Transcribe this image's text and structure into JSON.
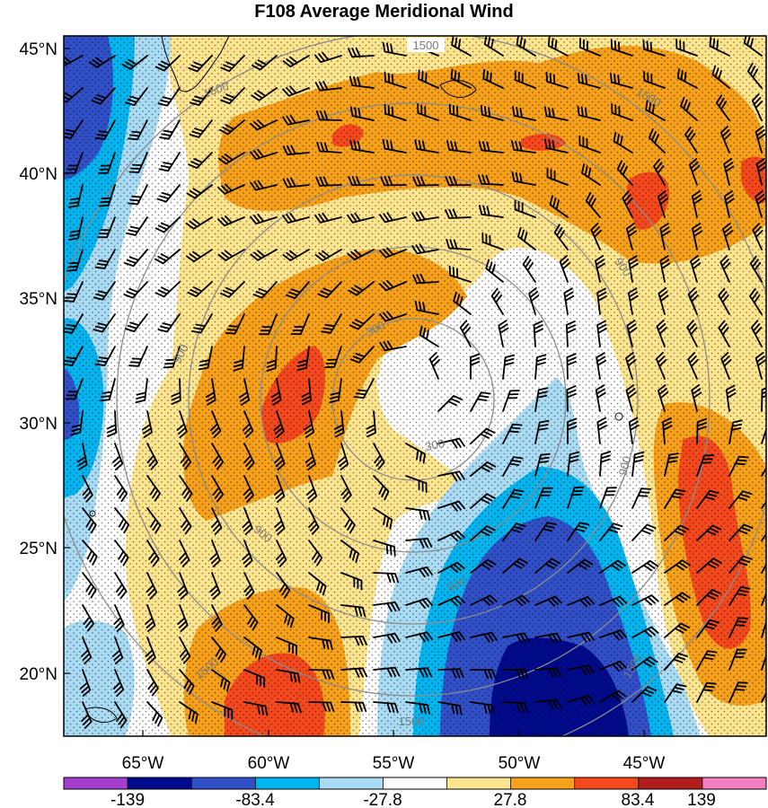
{
  "title": "F108 Average Meridional Wind",
  "lat_labels": [
    "45°N",
    "40°N",
    "35°N",
    "30°N",
    "25°N",
    "20°N"
  ],
  "lon_labels": [
    "65°W",
    "60°W",
    "55°W",
    "50°W",
    "45°W"
  ],
  "ring_labels": [
    "300",
    "900",
    "1500"
  ],
  "colorbar": {
    "colors": [
      "#a53fd0",
      "#000a8c",
      "#3150c8",
      "#00b4f0",
      "#a9dcf4",
      "#ffffff",
      "#fde58f",
      "#f7a01a",
      "#f5481c",
      "#b11c1c",
      "#f47ec1"
    ],
    "labels": [
      "-139",
      "-83.4",
      "-27.8",
      "27.8",
      "83.4",
      "139"
    ]
  },
  "colors": {
    "strong_negative": "#000a8c",
    "negative": "#3150c8",
    "moderate_negative": "#00b4f0",
    "weak_negative": "#a9dcf4",
    "near_zero": "#ffffff",
    "weak_positive": "#fde58f",
    "moderate_positive": "#f7a01a",
    "positive": "#f5481c",
    "strong_positive": "#b11c1c",
    "range_rings": "#8c8c8c"
  }
}
